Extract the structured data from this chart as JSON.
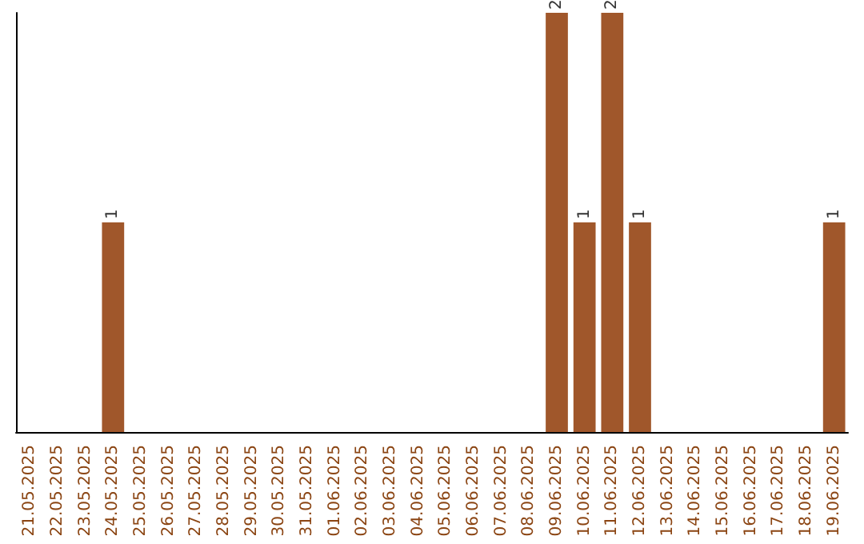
{
  "chart_data": {
    "type": "bar",
    "categories": [
      "21.05.2025",
      "22.05.2025",
      "23.05.2025",
      "24.05.2025",
      "25.05.2025",
      "26.05.2025",
      "27.05.2025",
      "28.05.2025",
      "29.05.2025",
      "30.05.2025",
      "31.05.2025",
      "01.06.2025",
      "02.06.2025",
      "03.06.2025",
      "04.06.2025",
      "05.06.2025",
      "06.06.2025",
      "07.06.2025",
      "08.06.2025",
      "09.06.2025",
      "10.06.2025",
      "11.06.2025",
      "12.06.2025",
      "13.06.2025",
      "14.06.2025",
      "15.06.2025",
      "16.06.2025",
      "17.06.2025",
      "18.06.2025",
      "19.06.2025"
    ],
    "values": [
      0,
      0,
      0,
      1,
      0,
      0,
      0,
      0,
      0,
      0,
      0,
      0,
      0,
      0,
      0,
      0,
      0,
      0,
      0,
      2,
      1,
      2,
      1,
      0,
      0,
      0,
      0,
      0,
      0,
      1
    ],
    "value_labels": [
      null,
      null,
      null,
      "1",
      null,
      null,
      null,
      null,
      null,
      null,
      null,
      null,
      null,
      null,
      null,
      null,
      null,
      null,
      null,
      "2",
      "1",
      "2",
      "1",
      null,
      null,
      null,
      null,
      null,
      null,
      "1"
    ],
    "color": "#a0572b",
    "grid": false,
    "tick_labels": "x"
  }
}
